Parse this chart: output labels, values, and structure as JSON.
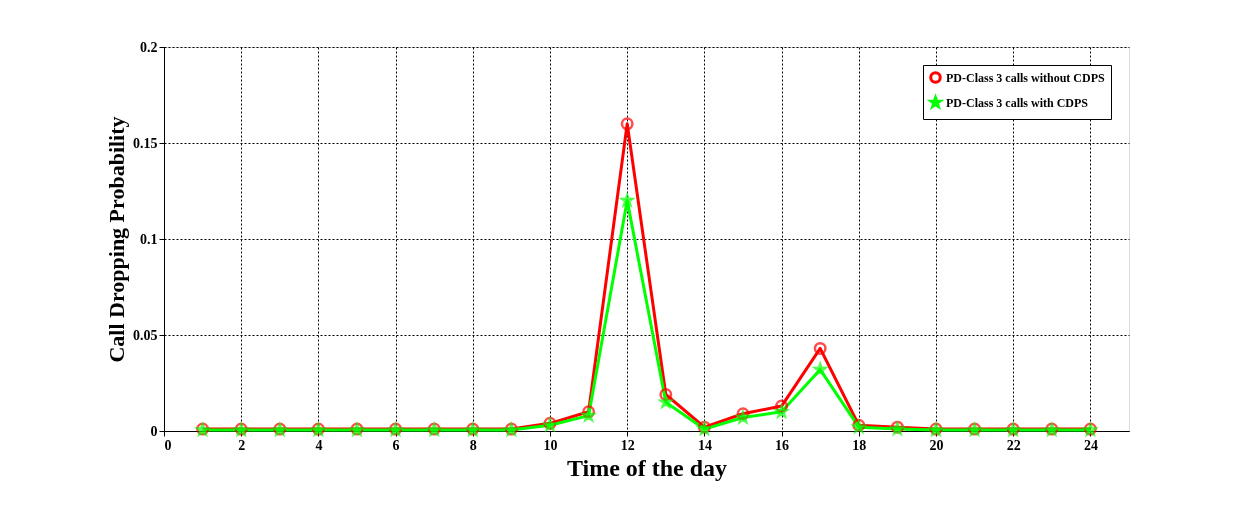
{
  "chart_data": {
    "type": "line",
    "xlabel": "Time of the day",
    "ylabel": "Call Dropping Probability",
    "x": [
      1,
      2,
      3,
      4,
      5,
      6,
      7,
      8,
      9,
      10,
      11,
      12,
      13,
      14,
      15,
      16,
      17,
      18,
      19,
      20,
      21,
      22,
      23,
      24
    ],
    "series": [
      {
        "name": "PD-Class 3 calls without CDPS",
        "color": "#ff0000",
        "marker": "circle",
        "values": [
          0.001,
          0.001,
          0.001,
          0.001,
          0.001,
          0.001,
          0.001,
          0.001,
          0.001,
          0.004,
          0.01,
          0.16,
          0.019,
          0.002,
          0.009,
          0.013,
          0.043,
          0.003,
          0.002,
          0.001,
          0.001,
          0.001,
          0.001,
          0.001
        ]
      },
      {
        "name": "PD-Class 3 calls with CDPS",
        "color": "#00ff00",
        "marker": "star",
        "values": [
          0.0005,
          0.0005,
          0.0005,
          0.0005,
          0.0005,
          0.0005,
          0.0005,
          0.0005,
          0.0005,
          0.003,
          0.008,
          0.12,
          0.015,
          0.001,
          0.007,
          0.01,
          0.032,
          0.002,
          0.001,
          0.0005,
          0.0005,
          0.0005,
          0.0005,
          0.0005
        ]
      }
    ],
    "xlim": [
      0,
      25
    ],
    "xticks": [
      0,
      2,
      4,
      6,
      8,
      10,
      12,
      14,
      16,
      18,
      20,
      22,
      24
    ],
    "ylim": [
      0,
      0.2
    ],
    "yticks": [
      0,
      0.05,
      0.1,
      0.15,
      0.2
    ],
    "grid": true,
    "legend": "top right",
    "line_style": "solid"
  }
}
